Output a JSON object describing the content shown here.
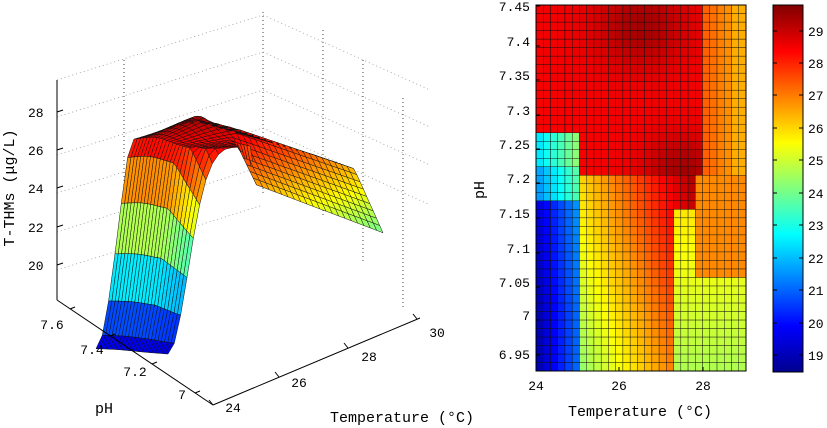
{
  "chart_data": [
    {
      "type": "surface",
      "xlabel": "Temperature (°C)",
      "ylabel": "pH",
      "zlabel": "T-THMs (μg/L)",
      "x_ticks": [
        "24",
        "26",
        "28",
        "30"
      ],
      "y_ticks": [
        "7",
        "7.2",
        "7.4",
        "7.6"
      ],
      "z_ticks": [
        "20",
        "22",
        "24",
        "26",
        "28"
      ],
      "xlim": [
        24,
        30
      ],
      "ylim": [
        6.95,
        7.6
      ],
      "zlim": [
        18.5,
        29.5
      ],
      "grid": true,
      "colormap": "jet"
    },
    {
      "type": "heatmap",
      "xlabel": "Temperature (°C)",
      "ylabel": "pH",
      "x_ticks": [
        "24",
        "26",
        "28"
      ],
      "y_ticks": [
        "6.95",
        "7",
        "7.05",
        "7.1",
        "7.15",
        "7.2",
        "7.25",
        "7.3",
        "7.35",
        "7.4",
        "7.45"
      ],
      "xlim": [
        24,
        29
      ],
      "ylim": [
        6.92,
        7.45
      ],
      "colorbar_ticks": [
        "19",
        "20",
        "21",
        "22",
        "23",
        "24",
        "25",
        "26",
        "27",
        "28",
        "29"
      ],
      "colorbar_range": [
        18.5,
        29.7
      ],
      "colormap": "jet",
      "cells": {
        "nx": 29,
        "ny": 43,
        "description_rows_bottom_to_top": "T-THMs in μg/L"
      }
    }
  ]
}
